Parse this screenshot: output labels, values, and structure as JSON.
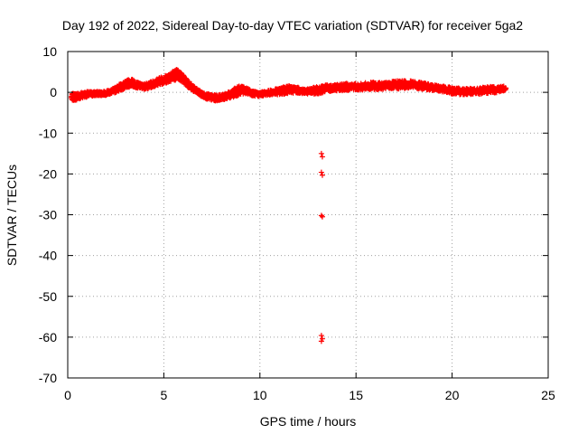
{
  "chart_data": {
    "type": "scatter",
    "title": "Day 192 of 2022, Sidereal Day-to-day VTEC variation (SDTVAR) for receiver 5ga2",
    "xlabel": "GPS time / hours",
    "ylabel": "SDTVAR / TECUs",
    "xlim": [
      0,
      25
    ],
    "ylim": [
      -70,
      10
    ],
    "xticks": [
      0,
      5,
      10,
      15,
      20,
      25
    ],
    "yticks": [
      10,
      0,
      -10,
      -20,
      -30,
      -40,
      -50,
      -60,
      -70
    ],
    "grid": true,
    "marker_color": "#ff0000",
    "main_series": {
      "x": [
        0.2,
        0.5,
        0.8,
        1.2,
        1.6,
        2.0,
        2.4,
        2.7,
        3.0,
        3.3,
        3.6,
        3.9,
        4.2,
        4.5,
        4.8,
        5.1,
        5.4,
        5.7,
        5.9,
        6.2,
        6.5,
        6.8,
        7.1,
        7.4,
        7.7,
        8.0,
        8.2,
        8.5,
        8.8,
        9.0,
        9.3,
        9.6,
        9.9,
        10.2,
        10.6,
        11.0,
        11.3,
        11.6,
        11.9,
        12.2,
        12.5,
        12.8,
        13.1,
        13.4,
        13.7,
        14.0,
        14.4,
        14.8,
        15.2,
        15.6,
        16.0,
        16.4,
        16.8,
        17.2,
        17.6,
        18.0,
        18.4,
        18.8,
        19.2,
        19.6,
        20.0,
        20.4,
        20.8,
        21.2,
        21.6,
        22.0,
        22.4,
        22.8
      ],
      "y": [
        -1.2,
        -1.0,
        -0.6,
        -0.4,
        -0.3,
        -0.2,
        0.4,
        1.2,
        1.8,
        2.4,
        1.8,
        1.4,
        1.6,
        2.2,
        2.8,
        3.2,
        4.0,
        4.4,
        3.8,
        2.4,
        1.0,
        0.0,
        -0.8,
        -1.2,
        -1.4,
        -1.2,
        -1.0,
        -0.4,
        0.2,
        0.6,
        0.4,
        -0.2,
        -0.5,
        -0.3,
        0.0,
        0.2,
        0.5,
        0.7,
        0.6,
        0.3,
        0.2,
        0.4,
        0.6,
        0.9,
        1.1,
        1.2,
        1.3,
        1.4,
        1.3,
        1.5,
        1.6,
        1.5,
        1.7,
        1.8,
        2.0,
        1.9,
        1.6,
        1.3,
        1.0,
        0.8,
        0.4,
        0.2,
        0.3,
        0.2,
        0.4,
        0.6,
        0.7,
        1.0
      ],
      "band_width": [
        1.6,
        1.8,
        1.4,
        1.2,
        1.0,
        1.0,
        1.2,
        1.6,
        1.8,
        2.0,
        1.4,
        1.2,
        1.4,
        1.6,
        1.8,
        2.0,
        2.4,
        2.6,
        2.2,
        1.8,
        1.4,
        1.2,
        1.2,
        1.4,
        1.4,
        1.2,
        1.4,
        1.8,
        2.2,
        2.0,
        1.4,
        1.2,
        1.0,
        1.0,
        1.2,
        1.6,
        1.8,
        1.8,
        1.4,
        1.2,
        1.2,
        1.6,
        1.8,
        1.8,
        1.6,
        1.6,
        1.8,
        1.6,
        1.6,
        1.8,
        1.8,
        1.6,
        1.8,
        2.0,
        2.0,
        1.8,
        1.6,
        1.6,
        1.4,
        1.4,
        1.6,
        1.6,
        1.6,
        1.4,
        1.6,
        1.6,
        1.4,
        1.2
      ]
    },
    "outliers": {
      "x": [
        13.2,
        13.25,
        13.2,
        13.25,
        13.2,
        13.25,
        13.2,
        13.25,
        13.2
      ],
      "y": [
        -15.0,
        -15.8,
        -19.6,
        -20.3,
        -30.2,
        -30.5,
        -59.6,
        -60.4,
        -61.0
      ]
    }
  }
}
